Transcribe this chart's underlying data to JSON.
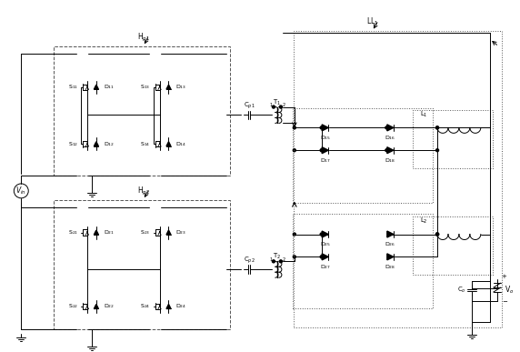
{
  "bg_color": "#ffffff",
  "line_color": "#000000",
  "fig_width": 5.72,
  "fig_height": 3.87,
  "dpi": 100
}
